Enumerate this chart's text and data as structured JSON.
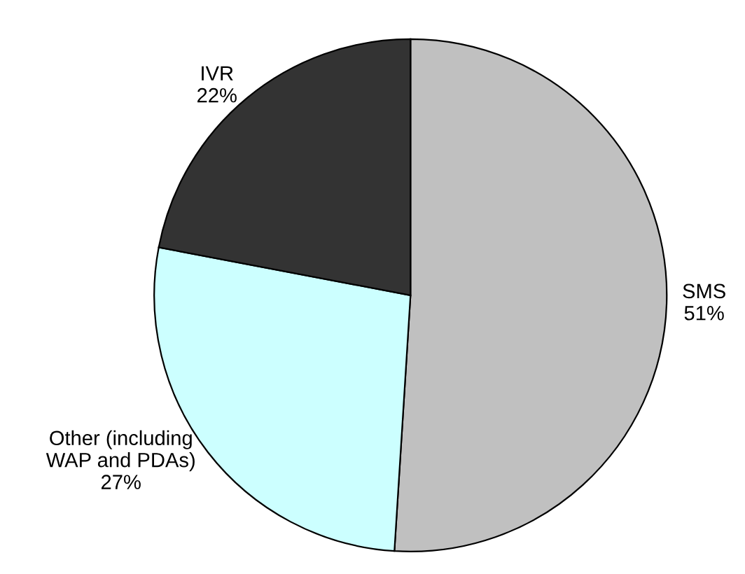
{
  "chart_data": {
    "type": "pie",
    "categories": [
      "SMS",
      "Other (including\nWAP and PDAs)",
      "IVR"
    ],
    "values": [
      51,
      27,
      22
    ],
    "value_labels": [
      "51%",
      "27%",
      "22%"
    ],
    "colors": [
      "#c0c0c0",
      "#ccffff",
      "#333333"
    ],
    "legend": false
  }
}
